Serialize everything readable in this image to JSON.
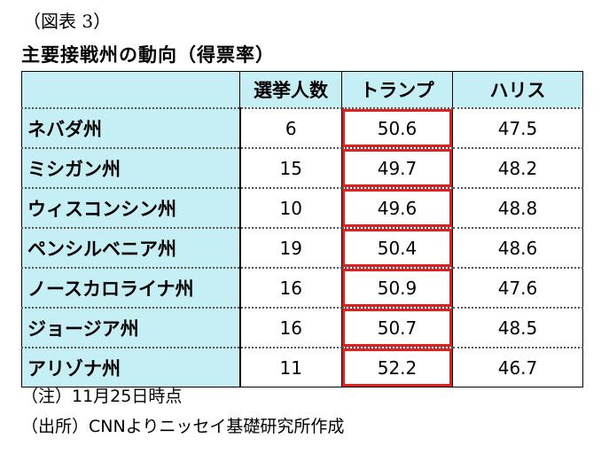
{
  "figure_label": "（図表 3）",
  "title": "主要接戦州の動向（得票率）",
  "table": {
    "columns": [
      "選挙人数",
      "トランプ",
      "ハリス"
    ],
    "rows": [
      {
        "state": "ネバダ州",
        "electors": "6",
        "trump": "50.6",
        "harris": "47.5"
      },
      {
        "state": "ミシガン州",
        "electors": "15",
        "trump": "49.7",
        "harris": "48.2"
      },
      {
        "state": "ウィスコンシン州",
        "electors": "10",
        "trump": "49.6",
        "harris": "48.8"
      },
      {
        "state": "ペンシルベニア州",
        "electors": "19",
        "trump": "50.4",
        "harris": "48.6"
      },
      {
        "state": "ノースカロライナ州",
        "electors": "16",
        "trump": "50.9",
        "harris": "47.6"
      },
      {
        "state": "ジョージア州",
        "electors": "16",
        "trump": "50.7",
        "harris": "48.5"
      },
      {
        "state": "アリゾナ州",
        "electors": "11",
        "trump": "52.2",
        "harris": "46.7"
      }
    ]
  },
  "notes": {
    "note": "（注）11月25日時点",
    "source": "（出所）CNNよりニッセイ基礎研究所作成"
  },
  "colors": {
    "header_bg": "#c5eef5",
    "highlight": "#e02020"
  }
}
